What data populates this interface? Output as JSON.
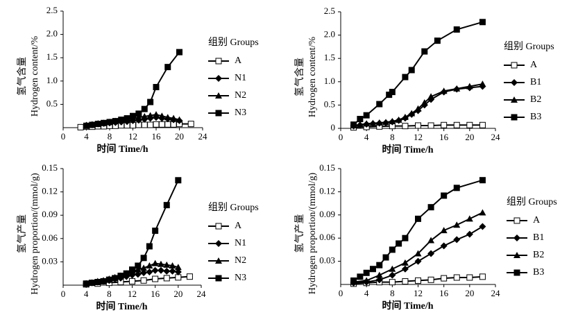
{
  "chart_data": [
    {
      "type": "line",
      "ylabel": [
        "氢气含量",
        "Hydrogen content/%"
      ],
      "xlabel": "时间  Time/h",
      "legend_title": "组别 Groups",
      "xlim": [
        0,
        24
      ],
      "xticks": [
        0,
        4,
        8,
        12,
        16,
        20,
        24
      ],
      "ylim": [
        0,
        2.5
      ],
      "yticks": [
        0.5,
        {
          "value": 1,
          "label": "1.0"
        },
        1.5,
        {
          "value": 2,
          "label": "2.0"
        },
        2.5
      ],
      "series": [
        {
          "name": "A",
          "color": "#000000",
          "marker": "square-open",
          "x": [
            3,
            4,
            5,
            6,
            7,
            8,
            9,
            10,
            11,
            12,
            13,
            14,
            15,
            16,
            17,
            18,
            19,
            20,
            22
          ],
          "values": [
            0.01,
            0.02,
            0.02,
            0.03,
            0.03,
            0.04,
            0.04,
            0.05,
            0.05,
            0.05,
            0.06,
            0.06,
            0.06,
            0.07,
            0.07,
            0.07,
            0.07,
            0.08,
            0.08
          ]
        },
        {
          "name": "N1",
          "color": "#000000",
          "marker": "diamond",
          "x": [
            4,
            5,
            6,
            7,
            8,
            9,
            10,
            11,
            12,
            13,
            14,
            15,
            16,
            17,
            18,
            19,
            20
          ],
          "values": [
            0.05,
            0.06,
            0.08,
            0.09,
            0.1,
            0.11,
            0.12,
            0.13,
            0.15,
            0.16,
            0.18,
            0.2,
            0.22,
            0.2,
            0.19,
            0.17,
            0.15
          ]
        },
        {
          "name": "N2",
          "color": "#000000",
          "marker": "triangle",
          "x": [
            4,
            5,
            6,
            7,
            8,
            9,
            10,
            11,
            12,
            13,
            14,
            15,
            16,
            17,
            18,
            19,
            20
          ],
          "values": [
            0.05,
            0.07,
            0.09,
            0.1,
            0.12,
            0.14,
            0.16,
            0.18,
            0.2,
            0.22,
            0.24,
            0.26,
            0.28,
            0.25,
            0.22,
            0.2,
            0.17
          ]
        },
        {
          "name": "N3",
          "color": "#000000",
          "marker": "square",
          "x": [
            4,
            5,
            6,
            7,
            8,
            9,
            10,
            11,
            12,
            13,
            14,
            15,
            16,
            18,
            20
          ],
          "values": [
            0.04,
            0.06,
            0.08,
            0.1,
            0.12,
            0.14,
            0.17,
            0.2,
            0.25,
            0.3,
            0.4,
            0.55,
            0.87,
            1.3,
            1.62
          ]
        }
      ]
    },
    {
      "type": "line",
      "ylabel": [
        "氢气含量",
        "Hydrogen content/%"
      ],
      "xlabel": "时间  Time/h",
      "legend_title": "组别 Groups",
      "xlim": [
        0,
        24
      ],
      "xticks": [
        0,
        4,
        8,
        12,
        16,
        20,
        24
      ],
      "ylim": [
        0,
        2.5
      ],
      "yticks": [
        0,
        0.5,
        {
          "value": 1,
          "label": "1.0"
        },
        1.5,
        {
          "value": 2,
          "label": "2.0"
        },
        2.5
      ],
      "series": [
        {
          "name": "A",
          "color": "#000000",
          "marker": "square-open",
          "x": [
            2,
            4,
            6,
            8,
            10,
            12,
            14,
            16,
            18,
            20,
            22
          ],
          "values": [
            0.02,
            0.03,
            0.04,
            0.05,
            0.05,
            0.06,
            0.06,
            0.07,
            0.07,
            0.07,
            0.07
          ]
        },
        {
          "name": "B1",
          "color": "#000000",
          "marker": "diamond",
          "x": [
            2,
            3,
            4,
            5,
            6,
            7,
            8,
            9,
            10,
            11,
            12,
            13,
            14,
            16,
            18,
            20,
            22
          ],
          "values": [
            0.05,
            0.07,
            0.09,
            0.1,
            0.11,
            0.12,
            0.14,
            0.17,
            0.22,
            0.3,
            0.38,
            0.5,
            0.62,
            0.78,
            0.84,
            0.87,
            0.9
          ]
        },
        {
          "name": "B2",
          "color": "#000000",
          "marker": "triangle",
          "x": [
            2,
            3,
            4,
            5,
            6,
            7,
            8,
            9,
            10,
            11,
            12,
            13,
            14,
            16,
            18,
            20,
            22
          ],
          "values": [
            0.06,
            0.08,
            0.1,
            0.11,
            0.12,
            0.13,
            0.15,
            0.18,
            0.24,
            0.32,
            0.42,
            0.55,
            0.68,
            0.8,
            0.85,
            0.9,
            0.95
          ]
        },
        {
          "name": "B3",
          "color": "#000000",
          "marker": "square",
          "x": [
            2,
            3,
            4,
            6,
            7.5,
            8,
            10,
            11,
            13,
            15,
            18,
            22
          ],
          "values": [
            0.08,
            0.2,
            0.28,
            0.52,
            0.72,
            0.78,
            1.1,
            1.25,
            1.65,
            1.88,
            2.12,
            2.28
          ]
        }
      ]
    },
    {
      "type": "line",
      "ylabel": [
        "氢气产量",
        "Hydrogen proportion/(mmol/g)"
      ],
      "xlabel": "时间  Time/h",
      "legend_title": "组别 Groups",
      "xlim": [
        0,
        24
      ],
      "xticks": [
        0,
        4,
        8,
        12,
        16,
        20,
        24
      ],
      "ylim": [
        0,
        0.15
      ],
      "yticks": [
        0.03,
        0.06,
        0.09,
        0.12,
        0.15
      ],
      "series": [
        {
          "name": "A",
          "color": "#000000",
          "marker": "square-open",
          "x": [
            4,
            6,
            8,
            10,
            12,
            14,
            16,
            18,
            20,
            22
          ],
          "values": [
            0.001,
            0.002,
            0.003,
            0.004,
            0.005,
            0.006,
            0.008,
            0.009,
            0.01,
            0.011
          ]
        },
        {
          "name": "N1",
          "color": "#000000",
          "marker": "diamond",
          "x": [
            4,
            5,
            6,
            7,
            8,
            9,
            10,
            11,
            12,
            13,
            14,
            15,
            16,
            17,
            18,
            19,
            20
          ],
          "values": [
            0.002,
            0.003,
            0.004,
            0.005,
            0.006,
            0.008,
            0.009,
            0.011,
            0.013,
            0.014,
            0.016,
            0.017,
            0.019,
            0.019,
            0.018,
            0.018,
            0.017
          ]
        },
        {
          "name": "N2",
          "color": "#000000",
          "marker": "triangle",
          "x": [
            4,
            5,
            6,
            7,
            8,
            9,
            10,
            11,
            12,
            13,
            14,
            15,
            16,
            17,
            18,
            19,
            20
          ],
          "values": [
            0.002,
            0.003,
            0.005,
            0.006,
            0.008,
            0.01,
            0.012,
            0.015,
            0.018,
            0.02,
            0.022,
            0.025,
            0.028,
            0.027,
            0.026,
            0.025,
            0.023
          ]
        },
        {
          "name": "N3",
          "color": "#000000",
          "marker": "square",
          "x": [
            4,
            5,
            6,
            7,
            8,
            9,
            10,
            11,
            12,
            13,
            14,
            15,
            16,
            18,
            20
          ],
          "values": [
            0.002,
            0.003,
            0.004,
            0.005,
            0.007,
            0.009,
            0.012,
            0.015,
            0.02,
            0.025,
            0.035,
            0.05,
            0.07,
            0.103,
            0.135
          ]
        }
      ]
    },
    {
      "type": "line",
      "ylabel": [
        "氢气产量",
        "Hydrogen proportion/(mmol/g)"
      ],
      "xlabel": "时间  Time/h",
      "legend_title": "组别 Groups",
      "xlim": [
        0,
        24
      ],
      "xticks": [
        0,
        4,
        8,
        12,
        16,
        20,
        24
      ],
      "ylim": [
        0,
        0.15
      ],
      "yticks": [
        0.03,
        0.06,
        0.09,
        0.12,
        0.15
      ],
      "series": [
        {
          "name": "A",
          "color": "#000000",
          "marker": "square-open",
          "x": [
            2,
            4,
            6,
            8,
            10,
            12,
            14,
            16,
            18,
            20,
            22
          ],
          "values": [
            0.001,
            0.002,
            0.003,
            0.003,
            0.004,
            0.005,
            0.006,
            0.008,
            0.009,
            0.009,
            0.01
          ]
        },
        {
          "name": "B1",
          "color": "#000000",
          "marker": "diamond",
          "x": [
            2,
            4,
            6,
            8,
            10,
            12,
            14,
            16,
            18,
            20,
            22
          ],
          "values": [
            0.002,
            0.003,
            0.006,
            0.012,
            0.02,
            0.03,
            0.04,
            0.05,
            0.058,
            0.065,
            0.075
          ]
        },
        {
          "name": "B2",
          "color": "#000000",
          "marker": "triangle",
          "x": [
            2,
            4,
            6,
            8,
            10,
            12,
            14,
            16,
            18,
            20,
            22
          ],
          "values": [
            0.003,
            0.005,
            0.012,
            0.02,
            0.028,
            0.04,
            0.057,
            0.07,
            0.077,
            0.085,
            0.093
          ]
        },
        {
          "name": "B3",
          "color": "#000000",
          "marker": "square",
          "x": [
            2,
            3,
            4,
            5,
            6,
            7,
            8,
            9,
            10,
            12,
            14,
            16,
            18,
            22
          ],
          "values": [
            0.005,
            0.01,
            0.015,
            0.02,
            0.025,
            0.035,
            0.045,
            0.053,
            0.06,
            0.085,
            0.1,
            0.115,
            0.125,
            0.135
          ]
        }
      ]
    }
  ]
}
